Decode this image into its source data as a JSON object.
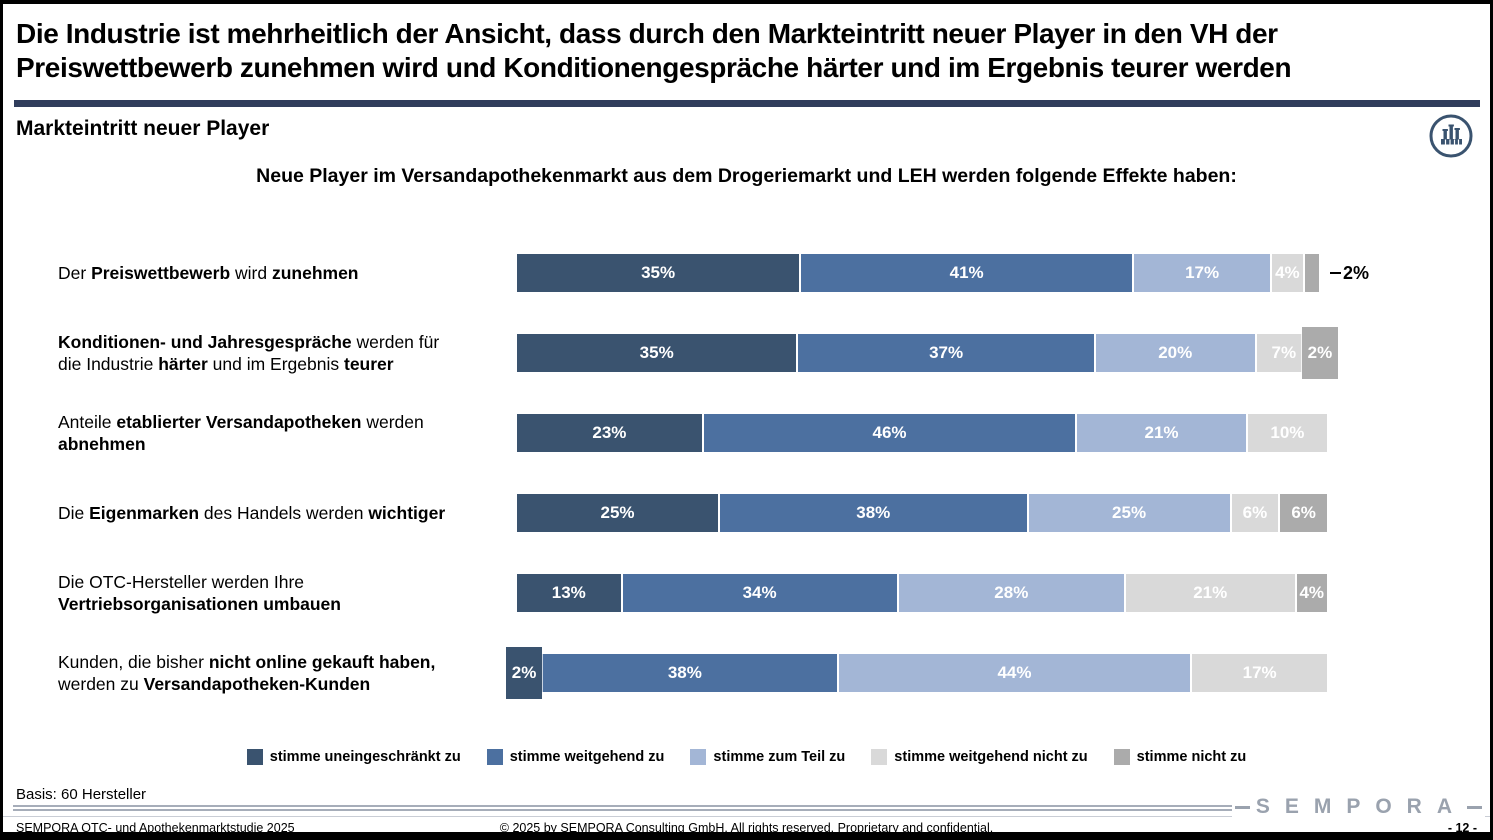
{
  "slide": {
    "title": "Die Industrie ist mehrheitlich der Ansicht, dass durch den Markteintritt neuer Player in den VH der\nPreiswettbewerb zunehmen wird und Konditionengespräche härter und im Ergebnis teurer werden",
    "section_title": "Markteintritt neuer Player",
    "corner_icon": "factory-icon",
    "accent_color": "#303D5C"
  },
  "chart_data": {
    "type": "bar",
    "variant": "horizontal-stacked-100-percent",
    "title": "Neue Player im Versandapothekenmarkt aus dem Drogeriemarkt und LEH werden folgende Effekte haben:",
    "unit": "%",
    "xlim": [
      0,
      100
    ],
    "grid": false,
    "legend_position": "bottom",
    "series": [
      {
        "name": "stimme uneingeschränkt zu",
        "color": "#3A536F"
      },
      {
        "name": "stimme weitgehend zu",
        "color": "#4C70A0"
      },
      {
        "name": "stimme zum Teil zu",
        "color": "#A3B6D6"
      },
      {
        "name": "stimme weitgehend nicht zu",
        "color": "#D9D9D9"
      },
      {
        "name": "stimme nicht zu",
        "color": "#ABABAB"
      }
    ],
    "categories": [
      "Der Preiswettbewerb wird zunehmen",
      "Konditionen- und Jahresgespräche werden für die Industrie härter und im Ergebnis teurer",
      "Anteile etablierter Versandapotheken werden abnehmen",
      "Die Eigenmarken des Handels werden wichtiger",
      "Die OTC-Hersteller werden Ihre Vertriebsorganisationen umbauen",
      "Kunden, die bisher nicht online gekauft haben, werden zu Versandapotheken-Kunden"
    ],
    "rows": [
      {
        "label_runs": [
          [
            "Der ",
            0
          ],
          [
            "Preiswettbewerb",
            1
          ],
          [
            " wird ",
            0
          ],
          [
            "zunehmen",
            1
          ]
        ],
        "segments": [
          {
            "series": 0,
            "value": 35,
            "label": "35%",
            "mode": "inside"
          },
          {
            "series": 1,
            "value": 41,
            "label": "41%",
            "mode": "inside"
          },
          {
            "series": 2,
            "value": 17,
            "label": "17%",
            "mode": "inside"
          },
          {
            "series": 3,
            "value": 4,
            "label": "4%",
            "mode": "inside"
          },
          {
            "series": 4,
            "value": 2,
            "label": "2%",
            "mode": "outside"
          }
        ]
      },
      {
        "label_runs": [
          [
            "Konditionen- und Jahresgespräche",
            1
          ],
          [
            " werden für\ndie Industrie ",
            0
          ],
          [
            "härter",
            1
          ],
          [
            " und im Ergebnis ",
            0
          ],
          [
            "teurer",
            1
          ]
        ],
        "segments": [
          {
            "series": 0,
            "value": 35,
            "label": "35%",
            "mode": "inside"
          },
          {
            "series": 1,
            "value": 37,
            "label": "37%",
            "mode": "inside"
          },
          {
            "series": 2,
            "value": 20,
            "label": "20%",
            "mode": "inside"
          },
          {
            "series": 3,
            "value": 7,
            "label": "7%",
            "mode": "inside"
          },
          {
            "series": 4,
            "value": 2,
            "label": "2%",
            "mode": "badge"
          }
        ]
      },
      {
        "label_runs": [
          [
            "Anteile ",
            0
          ],
          [
            "etablierter Versandapotheken",
            1
          ],
          [
            " werden\n",
            0
          ],
          [
            "abnehmen",
            1
          ]
        ],
        "segments": [
          {
            "series": 0,
            "value": 23,
            "label": "23%",
            "mode": "inside"
          },
          {
            "series": 1,
            "value": 46,
            "label": "46%",
            "mode": "inside"
          },
          {
            "series": 2,
            "value": 21,
            "label": "21%",
            "mode": "inside"
          },
          {
            "series": 3,
            "value": 10,
            "label": "10%",
            "mode": "inside"
          }
        ]
      },
      {
        "label_runs": [
          [
            "Die ",
            0
          ],
          [
            "Eigenmarken",
            1
          ],
          [
            " des Handels werden ",
            0
          ],
          [
            "wichtiger",
            1
          ]
        ],
        "segments": [
          {
            "series": 0,
            "value": 25,
            "label": "25%",
            "mode": "inside"
          },
          {
            "series": 1,
            "value": 38,
            "label": "38%",
            "mode": "inside"
          },
          {
            "series": 2,
            "value": 25,
            "label": "25%",
            "mode": "inside"
          },
          {
            "series": 3,
            "value": 6,
            "label": "6%",
            "mode": "inside"
          },
          {
            "series": 4,
            "value": 6,
            "label": "6%",
            "mode": "inside"
          }
        ]
      },
      {
        "label_runs": [
          [
            "Die OTC-Hersteller werden Ihre\n",
            0
          ],
          [
            "Vertriebsorganisationen umbauen",
            1
          ]
        ],
        "segments": [
          {
            "series": 0,
            "value": 13,
            "label": "13%",
            "mode": "inside"
          },
          {
            "series": 1,
            "value": 34,
            "label": "34%",
            "mode": "inside"
          },
          {
            "series": 2,
            "value": 28,
            "label": "28%",
            "mode": "inside"
          },
          {
            "series": 3,
            "value": 21,
            "label": "21%",
            "mode": "inside"
          },
          {
            "series": 4,
            "value": 4,
            "label": "4%",
            "mode": "inside"
          }
        ]
      },
      {
        "label_runs": [
          [
            "Kunden, die bisher ",
            0
          ],
          [
            "nicht online gekauft haben,",
            1
          ],
          [
            "\nwerden zu ",
            0
          ],
          [
            "Versandapotheken-Kunden",
            1
          ]
        ],
        "segments": [
          {
            "series": 0,
            "value": 2,
            "label": "2%",
            "mode": "badge"
          },
          {
            "series": 1,
            "value": 38,
            "label": "38%",
            "mode": "inside"
          },
          {
            "series": 2,
            "value": 44,
            "label": "44%",
            "mode": "inside"
          },
          {
            "series": 3,
            "value": 17,
            "label": "17%",
            "mode": "inside"
          }
        ]
      }
    ]
  },
  "footer": {
    "basis": "Basis: 60 Hersteller",
    "source_left": "SEMPORA OTC- und Apothekenmarktstudie 2025",
    "copyright_center": "© 2025 by SEMPORA Consulting GmbH. All rights reserved. Proprietary and confidential.",
    "page_number": "- 12 -",
    "logo_text": "SEMPORA"
  }
}
